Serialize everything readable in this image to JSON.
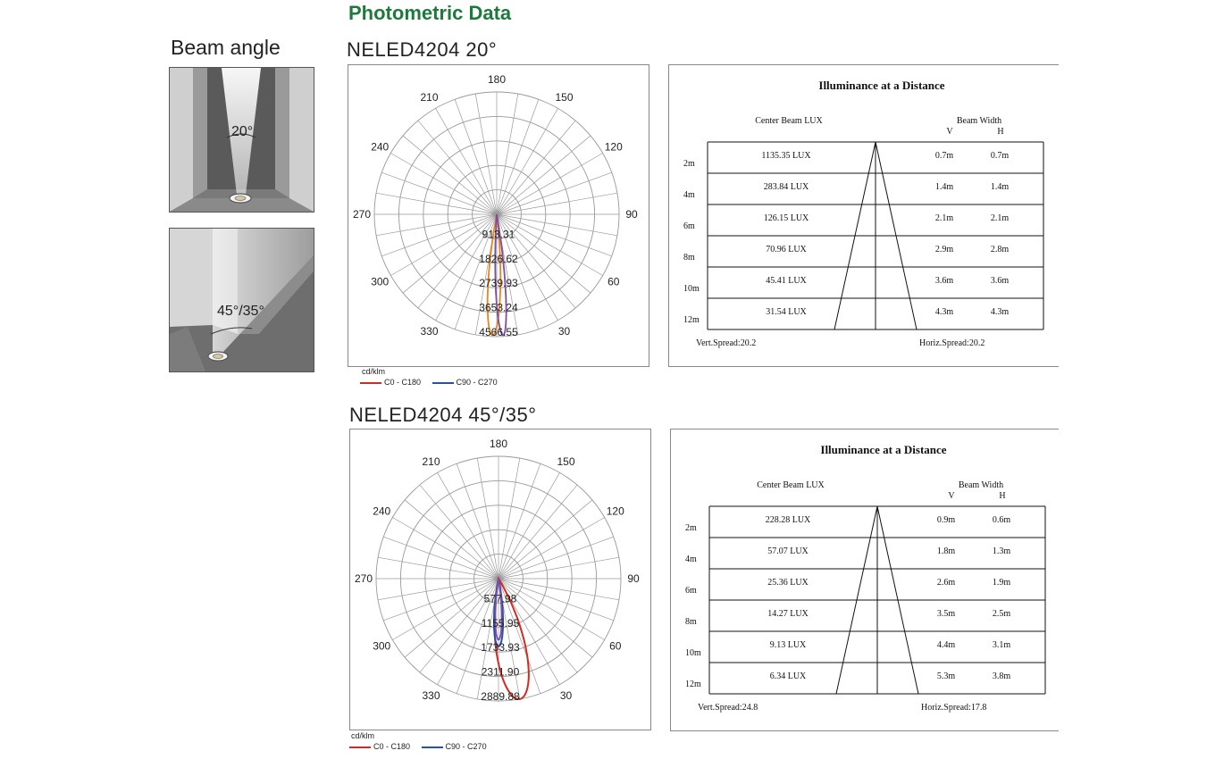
{
  "page": {
    "title": "Photometric Data",
    "beam_angle_label": "Beam angle",
    "thumb1_angle": "20°",
    "thumb2_angle": "45°/35°"
  },
  "colors": {
    "title_green": "#1e7a3c",
    "c0_c180": "#d62a1e",
    "c90_c270": "#2a4fa8",
    "orange_curve": "#e8861a",
    "purple_curve": "#7b4fa3"
  },
  "sections": [
    {
      "title": "NELED4204  20°",
      "polar": {
        "unit": "cd/klm",
        "angle_labels": [
          "180",
          "150",
          "120",
          "90",
          "60",
          "30",
          "330",
          "300",
          "270",
          "240",
          "210"
        ],
        "ring_labels": [
          "913.31",
          "1826.62",
          "2739.93",
          "3653.24",
          "4566.55"
        ],
        "legend": [
          {
            "name": "C0 - C180",
            "color": "#d62a1e"
          },
          {
            "name": "C90 - C270",
            "color": "#2a4fa8"
          }
        ]
      },
      "table": {
        "title": "Illuminance at a Distance",
        "center_label": "Center Beam LUX",
        "beam_width_label": "Beam Width",
        "v_label": "V",
        "h_label": "H",
        "rows": [
          {
            "dist": "2m",
            "lux": "1135.35 LUX",
            "v": "0.7m",
            "h": "0.7m"
          },
          {
            "dist": "4m",
            "lux": "283.84 LUX",
            "v": "1.4m",
            "h": "1.4m"
          },
          {
            "dist": "6m",
            "lux": "126.15 LUX",
            "v": "2.1m",
            "h": "2.1m"
          },
          {
            "dist": "8m",
            "lux": "70.96 LUX",
            "v": "2.9m",
            "h": "2.8m"
          },
          {
            "dist": "10m",
            "lux": "45.41 LUX",
            "v": "3.6m",
            "h": "3.6m"
          },
          {
            "dist": "12m",
            "lux": "31.54 LUX",
            "v": "4.3m",
            "h": "4.3m"
          }
        ],
        "vert_spread": "Vert.Spread:20.2",
        "horiz_spread": "Horiz.Spread:20.2"
      }
    },
    {
      "title": "NELED4204  45°/35°",
      "polar": {
        "unit": "cd/klm",
        "angle_labels": [
          "180",
          "150",
          "120",
          "90",
          "60",
          "30",
          "330",
          "300",
          "270",
          "240",
          "210"
        ],
        "ring_labels": [
          "577.98",
          "1155.95",
          "1733.93",
          "2311.90",
          "2889.88"
        ],
        "legend": [
          {
            "name": "C0 - C180",
            "color": "#d62a1e"
          },
          {
            "name": "C90 - C270",
            "color": "#2a4fa8"
          }
        ]
      },
      "table": {
        "title": "Illuminance at a Distance",
        "center_label": "Center Beam LUX",
        "beam_width_label": "Beam Width",
        "v_label": "V",
        "h_label": "H",
        "rows": [
          {
            "dist": "2m",
            "lux": "228.28 LUX",
            "v": "0.9m",
            "h": "0.6m"
          },
          {
            "dist": "4m",
            "lux": "57.07 LUX",
            "v": "1.8m",
            "h": "1.3m"
          },
          {
            "dist": "6m",
            "lux": "25.36 LUX",
            "v": "2.6m",
            "h": "1.9m"
          },
          {
            "dist": "8m",
            "lux": "14.27 LUX",
            "v": "3.5m",
            "h": "2.5m"
          },
          {
            "dist": "10m",
            "lux": "9.13 LUX",
            "v": "4.4m",
            "h": "3.1m"
          },
          {
            "dist": "12m",
            "lux": "6.34 LUX",
            "v": "5.3m",
            "h": "3.8m"
          }
        ],
        "vert_spread": "Vert.Spread:24.8",
        "horiz_spread": "Horiz.Spread:17.8"
      }
    }
  ],
  "chart_data": [
    {
      "type": "polar",
      "unit": "cd/klm",
      "r_max": 4566.55,
      "ring_values": [
        913.31,
        1826.62,
        2739.93,
        3653.24,
        4566.55
      ],
      "series": [
        {
          "name": "C0 - C180",
          "color": "#d62a1e",
          "half_angle_deg": 10,
          "peak": 4566.55
        },
        {
          "name": "C90 - C270",
          "color": "#2a4fa8",
          "half_angle_deg": 10,
          "peak": 4566.55
        }
      ]
    },
    {
      "type": "polar",
      "unit": "cd/klm",
      "r_max": 2889.88,
      "ring_values": [
        577.98,
        1155.95,
        1733.93,
        2311.9,
        2889.88
      ],
      "series": [
        {
          "name": "C0 - C180",
          "color": "#d62a1e",
          "half_angle_deg": 22,
          "peak": 2889.88,
          "tilt_deg": 10
        },
        {
          "name": "C90 - C270",
          "color": "#2a4fa8",
          "half_angle_deg": 12,
          "peak": 1600
        }
      ]
    }
  ]
}
